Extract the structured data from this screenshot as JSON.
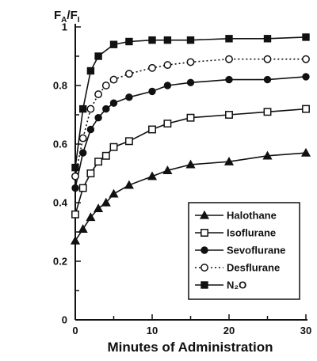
{
  "chart_data": {
    "type": "line",
    "title": "",
    "xlabel": "Minutes of Administration",
    "ylabel": {
      "base": "F",
      "sub_num": "A",
      "sep": "/F",
      "sub_den": "I"
    },
    "xlim": [
      0,
      30
    ],
    "ylim": [
      0,
      1
    ],
    "xticks": [
      0,
      10,
      20,
      30
    ],
    "yticks": [
      "0",
      "0.2",
      "0.4",
      "0.6",
      "0.8",
      "1"
    ],
    "grid": false,
    "legend_position": "bottom-right",
    "series": [
      {
        "name": "Halothane",
        "marker": "triangle",
        "line": "solid",
        "x": [
          0,
          1,
          2,
          3,
          4,
          5,
          7,
          10,
          12,
          15,
          20,
          25,
          30
        ],
        "y": [
          0.27,
          0.31,
          0.35,
          0.38,
          0.4,
          0.43,
          0.46,
          0.49,
          0.51,
          0.53,
          0.54,
          0.56,
          0.57
        ]
      },
      {
        "name": "Isoflurane",
        "marker": "square-open",
        "line": "solid",
        "x": [
          0,
          1,
          2,
          3,
          4,
          5,
          7,
          10,
          12,
          15,
          20,
          25,
          30
        ],
        "y": [
          0.36,
          0.45,
          0.5,
          0.54,
          0.56,
          0.59,
          0.61,
          0.65,
          0.67,
          0.69,
          0.7,
          0.71,
          0.72
        ]
      },
      {
        "name": "Sevoflurane",
        "marker": "circle-filled",
        "line": "solid",
        "x": [
          0,
          1,
          2,
          3,
          4,
          5,
          7,
          10,
          12,
          15,
          20,
          25,
          30
        ],
        "y": [
          0.45,
          0.57,
          0.65,
          0.69,
          0.72,
          0.74,
          0.76,
          0.78,
          0.8,
          0.81,
          0.82,
          0.82,
          0.83
        ]
      },
      {
        "name": "Desflurane",
        "marker": "circle-open",
        "line": "dotted",
        "x": [
          0,
          1,
          2,
          3,
          4,
          5,
          7,
          10,
          12,
          15,
          20,
          25,
          30
        ],
        "y": [
          0.49,
          0.62,
          0.72,
          0.77,
          0.8,
          0.82,
          0.84,
          0.86,
          0.87,
          0.88,
          0.89,
          0.89,
          0.89
        ]
      },
      {
        "name": "N₂O",
        "marker": "square-filled",
        "line": "solid",
        "x": [
          0,
          1,
          2,
          3,
          5,
          7,
          10,
          12,
          15,
          20,
          25,
          30
        ],
        "y": [
          0.52,
          0.72,
          0.85,
          0.9,
          0.94,
          0.95,
          0.955,
          0.955,
          0.955,
          0.96,
          0.96,
          0.965
        ]
      }
    ]
  }
}
